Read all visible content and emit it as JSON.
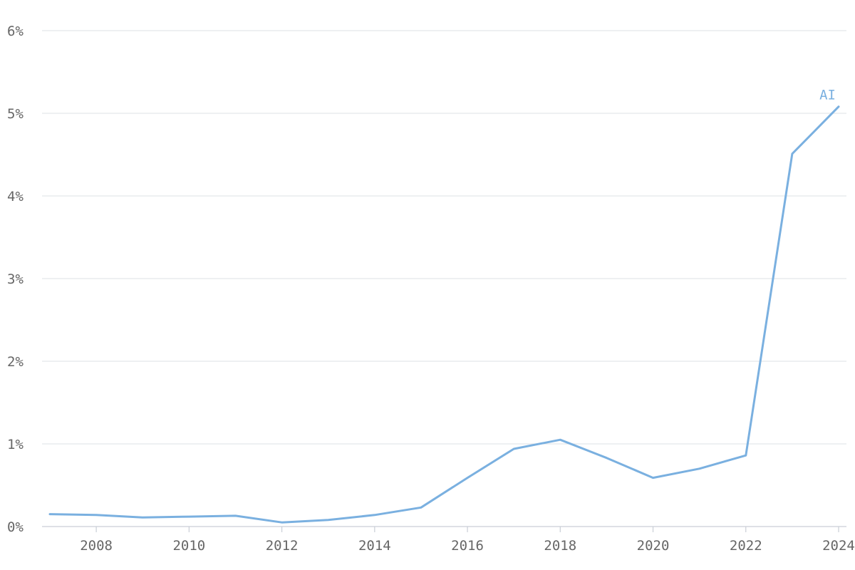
{
  "chart_data": {
    "type": "line",
    "title": "",
    "xlabel": "",
    "ylabel": "",
    "xlim": [
      2007,
      2024
    ],
    "ylim": [
      0,
      6
    ],
    "grid": true,
    "y_ticks": [
      0,
      1,
      2,
      3,
      4,
      5,
      6
    ],
    "y_tick_labels": [
      "0%",
      "1%",
      "2%",
      "3%",
      "4%",
      "5%",
      "6%"
    ],
    "x_ticks": [
      2008,
      2010,
      2012,
      2014,
      2016,
      2018,
      2020,
      2022,
      2024
    ],
    "x_tick_labels": [
      "2008",
      "2010",
      "2012",
      "2014",
      "2016",
      "2018",
      "2020",
      "2022",
      "2024"
    ],
    "series": [
      {
        "name": "AI",
        "color": "#7ab0e0",
        "x": [
          2007,
          2008,
          2009,
          2010,
          2011,
          2012,
          2013,
          2014,
          2015,
          2016,
          2017,
          2018,
          2019,
          2020,
          2021,
          2022,
          2023,
          2024
        ],
        "y": [
          0.15,
          0.14,
          0.11,
          0.12,
          0.13,
          0.05,
          0.08,
          0.14,
          0.23,
          0.59,
          0.94,
          1.05,
          0.83,
          0.59,
          0.7,
          0.86,
          4.51,
          5.08
        ]
      }
    ]
  }
}
